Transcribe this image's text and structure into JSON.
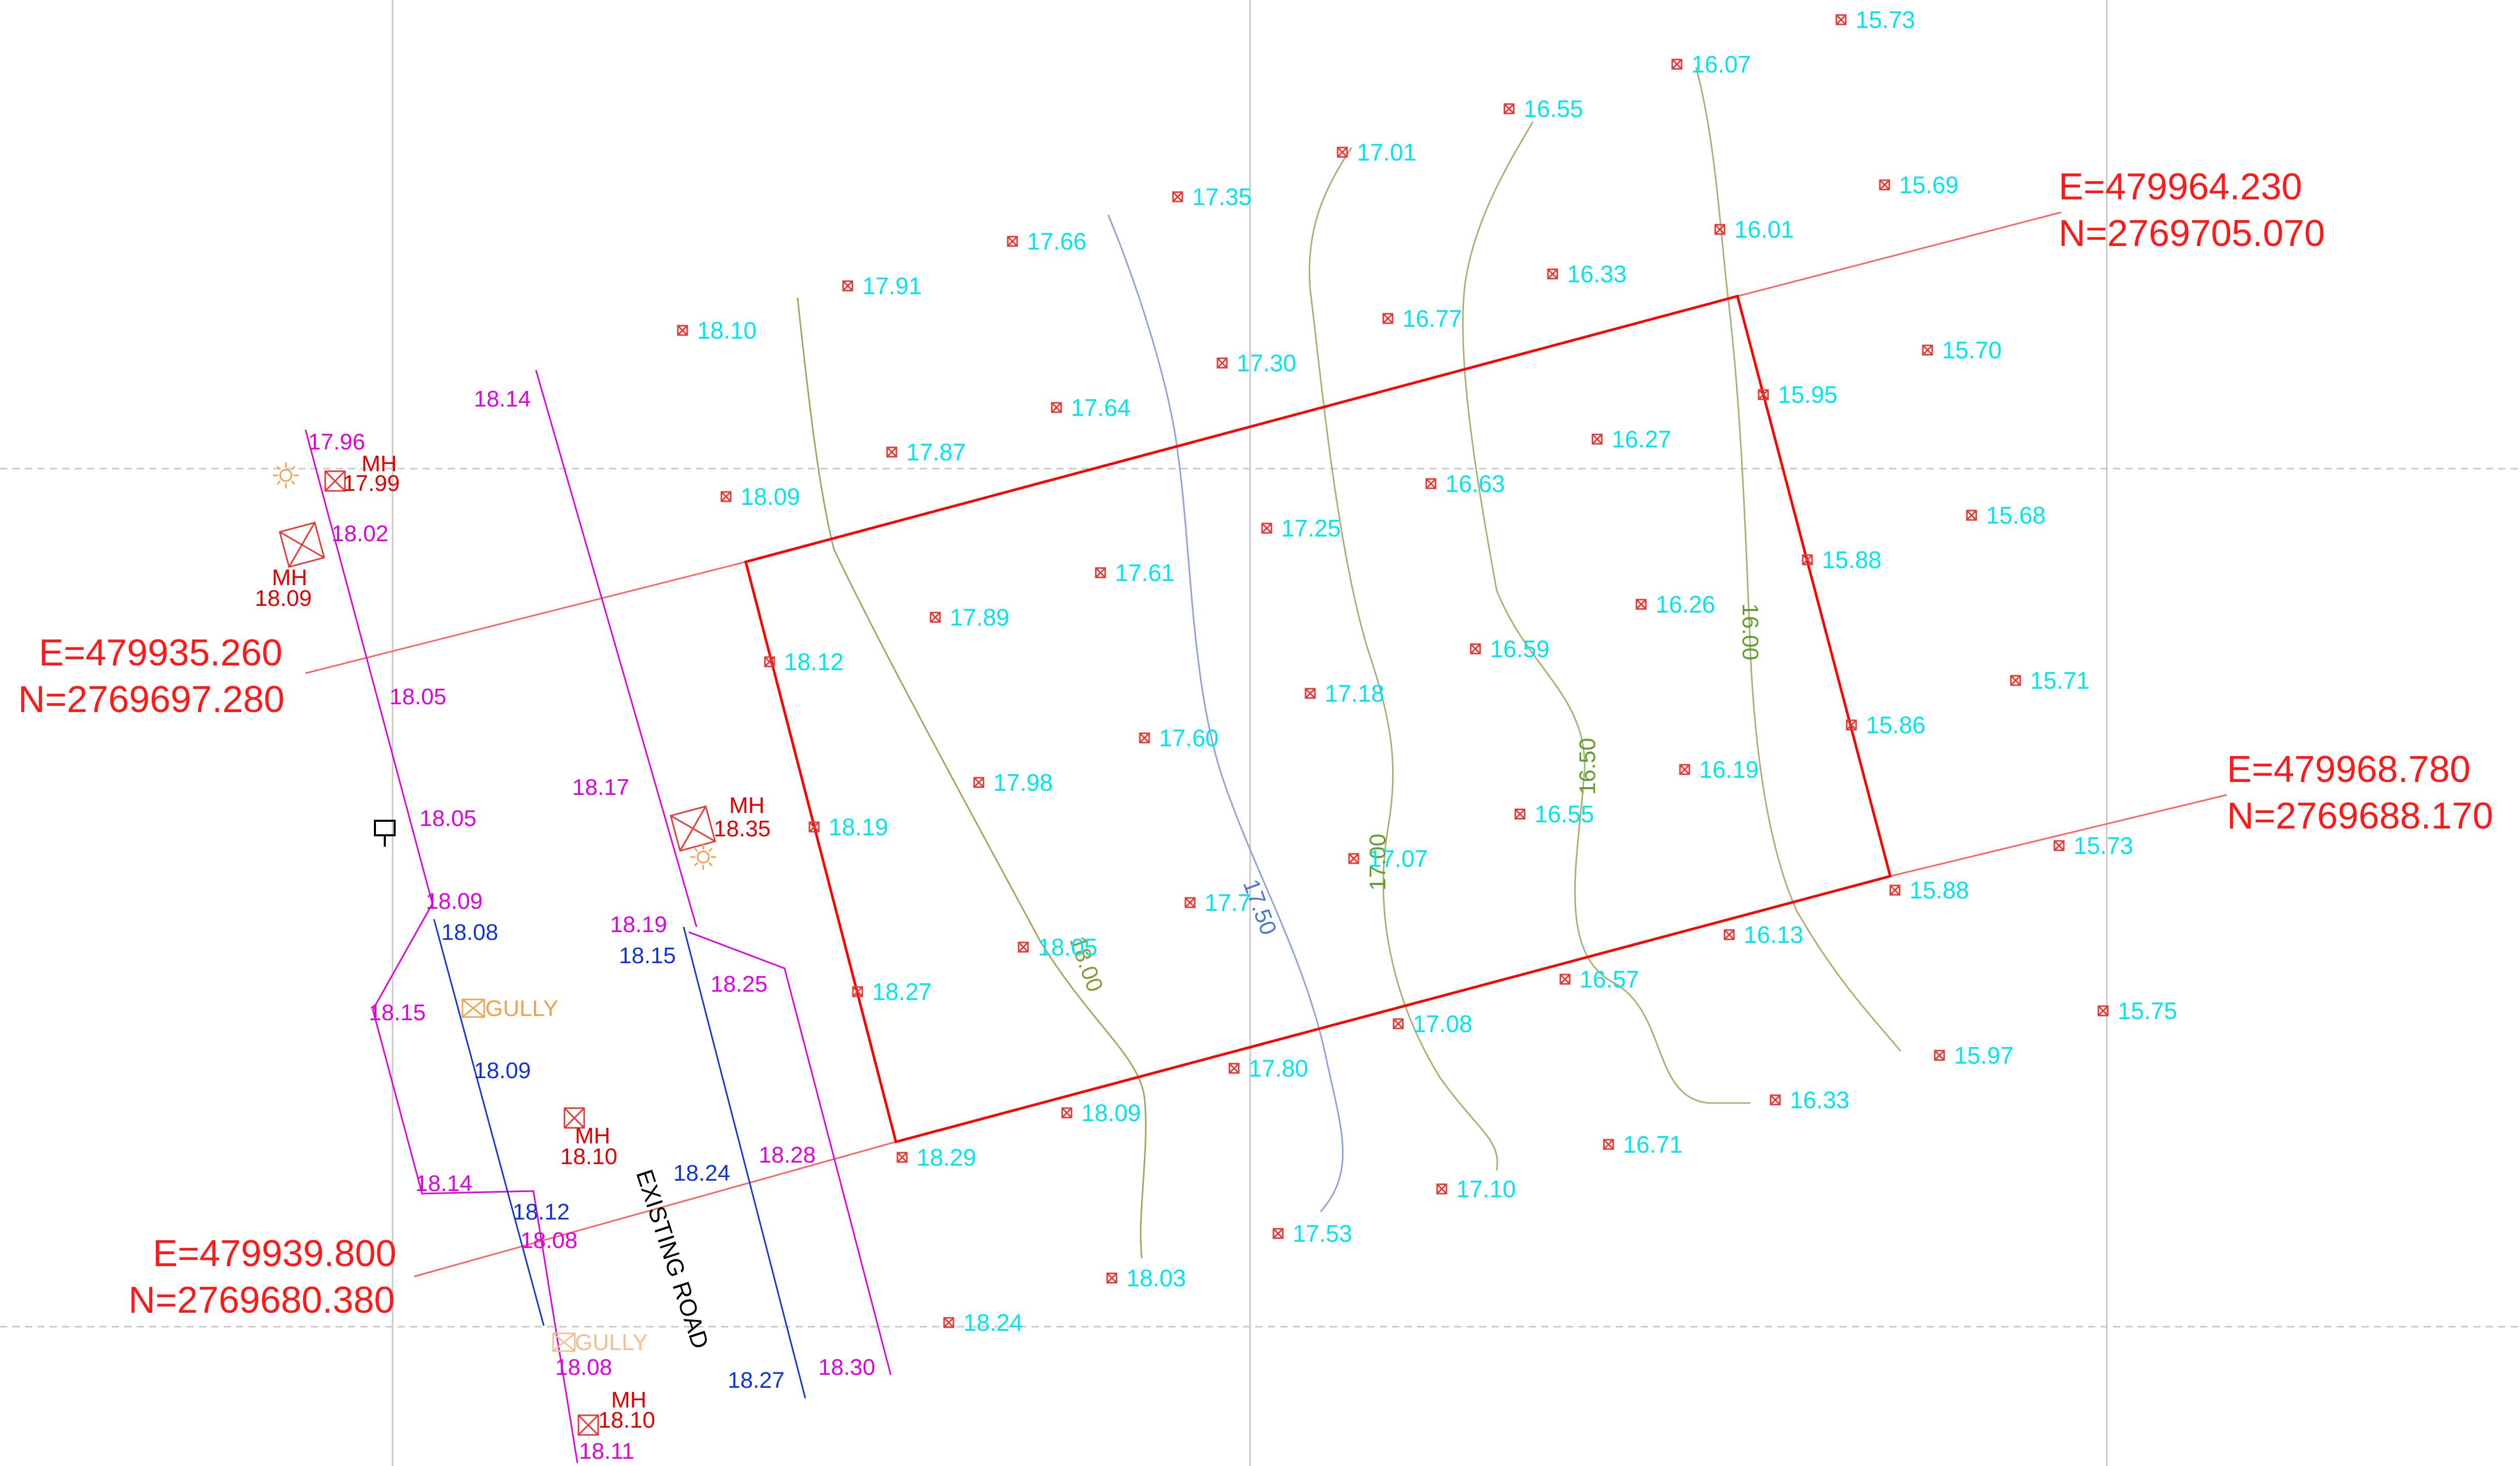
{
  "map": {
    "grid_color": "#c8c8c8",
    "boundary_color": "#ff0000",
    "spot_label_color": "#00e5ee",
    "road_magenta_color": "#e000e0",
    "road_blue_color": "#1034d8",
    "road_name": "EXISTING ROAD",
    "corners": [
      {
        "e": "E=479935.260",
        "n": "N=2769697.280"
      },
      {
        "e": "E=479964.230",
        "n": "N=2769705.070"
      },
      {
        "e": "E=479968.780",
        "n": "N=2769688.170"
      },
      {
        "e": "E=479939.800",
        "n": "N=2769680.380"
      }
    ],
    "contours": [
      {
        "label": "18.00",
        "color": "#8a9a3a"
      },
      {
        "label": "17.50",
        "color": "#4a78d0"
      },
      {
        "label": "17.00",
        "color": "#5fa02a"
      },
      {
        "label": "16.50",
        "color": "#5fa02a"
      },
      {
        "label": "16.00",
        "color": "#5fa02a"
      }
    ],
    "spot_levels": [
      "15.73",
      "16.07",
      "16.55",
      "17.01",
      "17.35",
      "17.66",
      "17.91",
      "18.10",
      "15.69",
      "16.01",
      "16.33",
      "16.77",
      "17.30",
      "17.64",
      "17.87",
      "18.09",
      "15.70",
      "15.95",
      "16.27",
      "16.63",
      "17.25",
      "17.61",
      "17.89",
      "18.12",
      "15.68",
      "15.88",
      "16.26",
      "16.59",
      "17.18",
      "17.60",
      "17.98",
      "18.19",
      "15.71",
      "15.86",
      "16.19",
      "16.55",
      "17.07",
      "17.7",
      "18.05",
      "18.27",
      "15.73",
      "15.88",
      "16.13",
      "16.57",
      "17.08",
      "17.80",
      "18.09",
      "18.29",
      "15.75",
      "15.97",
      "16.33",
      "16.71",
      "17.10",
      "17.53",
      "18.03",
      "18.24"
    ],
    "road_levels_magenta": [
      "17.96",
      "18.02",
      "18.05",
      "18.05",
      "18.09",
      "18.15",
      "18.14",
      "18.08",
      "18.08",
      "18.11",
      "18.14",
      "18.17",
      "18.19",
      "18.25",
      "18.28",
      "18.30"
    ],
    "road_levels_blue": [
      "18.08",
      "18.09",
      "18.12",
      "18.15",
      "18.24",
      "18.27"
    ],
    "manholes": [
      {
        "label": "MH",
        "level": "17.99"
      },
      {
        "label": "MH",
        "level": "18.09"
      },
      {
        "label": "MH",
        "level": "18.35"
      },
      {
        "label": "MH",
        "level": "18.10"
      },
      {
        "label": "MH",
        "level": "18.10"
      }
    ],
    "gullies": [
      "GULLY",
      "GULLY"
    ]
  }
}
